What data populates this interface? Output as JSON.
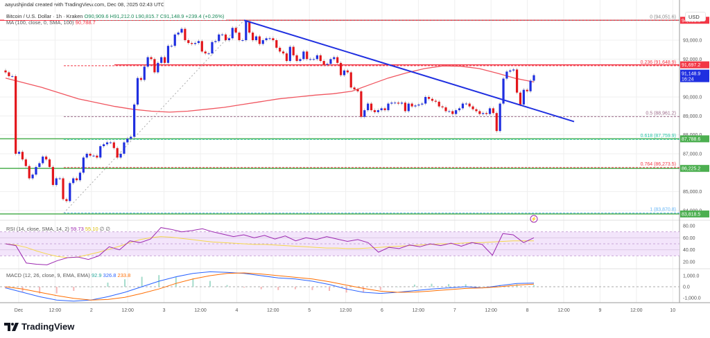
{
  "header": {
    "credit": "aayushjindal created with TradingView.com, Dec 08, 2025 02:43 UTC",
    "symbol": "Bitcoin / U.S. Dollar · 1h · Kraken",
    "ohlc": "O90,909.6  H91,212.0  L90,815.7  C91,148.9  +239.4 (+0.26%)",
    "ma_label": "MA (100, close, 0, SMA, 100)",
    "ma_value": "90,788.7",
    "currency": "USD"
  },
  "colors": {
    "up": "#1f2fe0",
    "down": "#e3161b",
    "ma": "#f0555f",
    "trendline": "#1f2fe0",
    "support": "#4caf50",
    "resistance": "#f23645",
    "rsi": "#9c27b0",
    "rsi_ma": "#f5d84a",
    "macd": "#2962ff",
    "signal": "#ff6d00",
    "rsi_band": "#f3e5fb"
  },
  "chart_data": {
    "type": "candlestick",
    "interval": "1h",
    "price_axis": {
      "ticks": [
        "93,000.0",
        "92,000.0",
        "90,000.0",
        "89,000.0",
        "88,000.0",
        "87,000.0",
        "85,000.0",
        "84,000.0"
      ],
      "tick_values": [
        93000,
        92000,
        90000,
        89000,
        88000,
        87000,
        85000,
        84000
      ]
    },
    "time_axis": {
      "ticks": [
        "Dec",
        "12:00",
        "2",
        "12:00",
        "3",
        "12:00",
        "4",
        "12:00",
        "5",
        "12:00",
        "6",
        "12:00",
        "7",
        "12:00",
        "8",
        "12:00",
        "9",
        "12:00",
        "10"
      ]
    },
    "closes": [
      91300,
      91100,
      91100,
      87000,
      87100,
      86700,
      86350,
      85700,
      85900,
      86300,
      86500,
      86850,
      86700,
      86300,
      85350,
      85700,
      85700,
      84600,
      84500,
      85450,
      85700,
      85600,
      86000,
      86800,
      87000,
      86900,
      86900,
      86800,
      87400,
      87500,
      87600,
      87600,
      87300,
      86800,
      87000,
      87600,
      87800,
      87900,
      89600,
      91000,
      90900,
      91600,
      92100,
      92000,
      91300,
      91800,
      92100,
      91800,
      92700,
      92700,
      93300,
      93400,
      93600,
      93000,
      92850,
      92800,
      92850,
      92950,
      92400,
      92300,
      92300,
      92900,
      92950,
      93300,
      93300,
      93000,
      93100,
      93650,
      93400,
      93000,
      93000,
      94000,
      93400,
      93000,
      93200,
      92800,
      93000,
      93100,
      93100,
      93000,
      92600,
      92400,
      92300,
      91900,
      92650,
      92200,
      91900,
      92000,
      92400,
      92000,
      92000,
      92000,
      92200,
      91900,
      91700,
      91750,
      92000,
      92100,
      91800,
      91150,
      91400,
      91300,
      90500,
      90400,
      90300,
      88950,
      89300,
      89650,
      89300,
      89200,
      89300,
      89400,
      89300,
      89650,
      89700,
      89700,
      89650,
      89700,
      89250,
      89650,
      89500,
      89550,
      89600,
      89650,
      90000,
      89900,
      89800,
      89750,
      89500,
      89450,
      89250,
      89250,
      89100,
      89300,
      89400,
      89650,
      89650,
      89500,
      89350,
      89250,
      89100,
      89150,
      89100,
      89400,
      89150,
      88200,
      89650,
      90970,
      91340,
      91400,
      91450,
      90230,
      89600,
      90380,
      90300,
      90860,
      91148.9
    ],
    "ma100": [
      91000,
      90750,
      90500,
      90200,
      89900,
      89700,
      89500,
      89350,
      89250,
      89200,
      89250,
      89350,
      89450,
      89600,
      89750,
      89900,
      90000,
      90100,
      90170,
      90300,
      90650,
      91000,
      91270,
      91500,
      91640,
      91620,
      91500,
      91250,
      90980,
      90789
    ],
    "levels": [
      {
        "label": "91,697.2",
        "price": 91697.2,
        "kind": "resistance"
      },
      {
        "label": "94,051.6",
        "price": 94051.6,
        "kind": "resistance"
      },
      {
        "label": "87,788.6",
        "price": 87788.6,
        "kind": "support"
      },
      {
        "label": "86,225.2",
        "price": 86225.2,
        "kind": "support"
      },
      {
        "label": "83,818.5",
        "price": 83818.5,
        "kind": "support"
      }
    ],
    "fib": [
      {
        "label": "0 (94,051.6)",
        "price": 94051.6,
        "color": "#888888"
      },
      {
        "label": "0.236 (91,648.9)",
        "price": 91648.9,
        "color": "#f23645"
      },
      {
        "label": "0.5 (88,961.2)",
        "price": 88961.2,
        "color": "#9c6b8a"
      },
      {
        "label": "0.618 (87,759.9)",
        "price": 87759.9,
        "color": "#26c6a6"
      },
      {
        "label": "0.764 (86,273.5)",
        "price": 86273.5,
        "color": "#f23645"
      },
      {
        "label": "1 (83,870.8)",
        "price": 83870.8,
        "color": "#64b5f6"
      }
    ],
    "trendline": {
      "from_price": 94051.6,
      "to_price": 88700
    },
    "current_price": {
      "label": "91,148.9",
      "countdown": "16:24"
    },
    "rsi": {
      "label": "RSI (14, close, SMA, 14, 2)",
      "value": "59.73",
      "ma_value": "55.10",
      "extra": "∅  ∅",
      "ticks": [
        "80.00",
        "60.00",
        "40.00",
        "20.00"
      ],
      "band": [
        30,
        70
      ],
      "values": [
        50,
        47,
        18,
        16,
        15,
        22,
        27,
        28,
        24,
        30,
        45,
        40,
        55,
        52,
        58,
        77,
        74,
        70,
        72,
        75,
        70,
        66,
        62,
        65,
        60,
        64,
        58,
        63,
        55,
        60,
        57,
        62,
        58,
        54,
        57,
        52,
        36,
        44,
        42,
        48,
        45,
        50,
        47,
        51,
        46,
        52,
        49,
        31,
        67,
        65,
        52,
        60
      ],
      "ma": [
        50,
        48,
        44,
        38,
        33,
        29,
        27,
        28,
        32,
        36,
        41,
        46,
        52,
        57,
        60,
        62,
        61,
        59,
        57,
        55,
        53,
        52,
        51,
        50,
        49,
        49,
        48,
        47,
        46,
        45,
        44,
        43,
        43,
        42,
        42,
        43,
        44,
        45,
        46,
        47,
        48,
        49,
        50,
        50,
        51,
        52,
        52,
        53,
        54,
        55,
        55,
        55
      ]
    },
    "macd": {
      "label": "MACD (12, 26, close, 9, EMA, EMA)",
      "hist_value": "92.9",
      "macd_value": "326.8",
      "signal_value": "233.8",
      "ticks": [
        "1,000.0",
        "0.0",
        "-1,000.0"
      ],
      "macd": [
        -100,
        -500,
        -900,
        -1200,
        -1300,
        -1200,
        -900,
        -500,
        0,
        500,
        900,
        1200,
        1350,
        1300,
        1200,
        1000,
        800,
        700,
        500,
        200,
        -200,
        -500,
        -600,
        -500,
        -350,
        -200,
        -100,
        0,
        -100,
        100,
        300,
        330
      ],
      "signal": [
        0,
        -200,
        -500,
        -800,
        -1050,
        -1200,
        -1150,
        -950,
        -600,
        -200,
        300,
        700,
        1000,
        1200,
        1250,
        1150,
        1000,
        850,
        700,
        450,
        150,
        -150,
        -400,
        -500,
        -480,
        -380,
        -260,
        -150,
        -100,
        0,
        150,
        234
      ]
    }
  },
  "logo": {
    "text": "TradingView"
  }
}
